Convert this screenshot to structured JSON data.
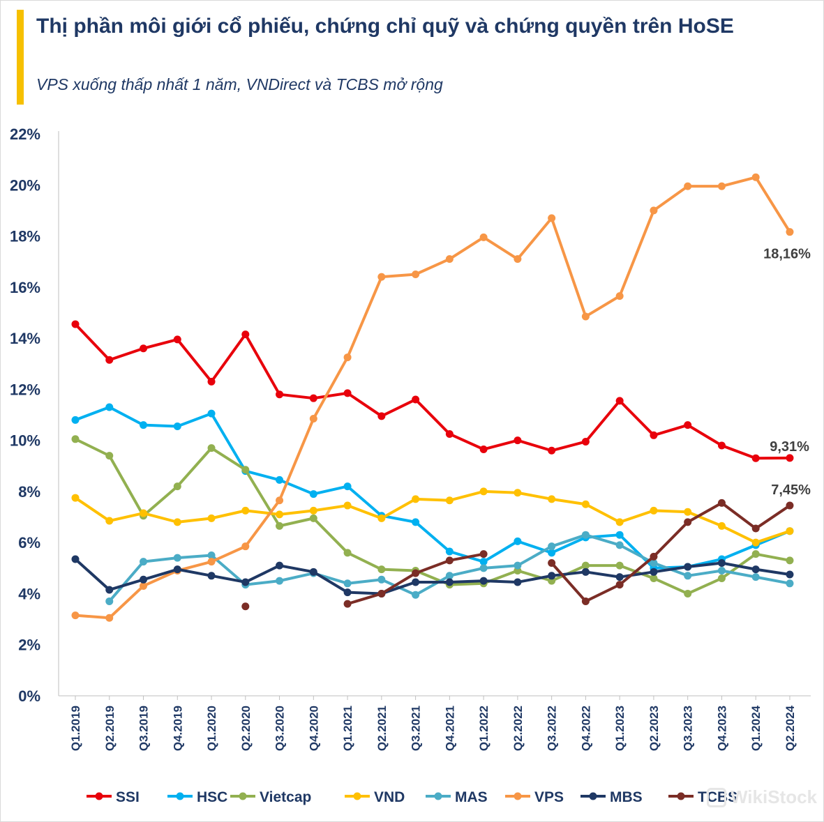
{
  "header": {
    "title": "Thị phần môi giới cổ phiếu, chứng chỉ quỹ và chứng quyền trên HoSE",
    "subtitle": "VPS xuống thấp nhất 1 năm, VNDirect và TCBS mở rộng"
  },
  "watermark": "WikiStock",
  "colors": {
    "accent": "#f6c000",
    "text": "#1f3864"
  },
  "chart_data": {
    "type": "line",
    "title": "Thị phần môi giới cổ phiếu, chứng chỉ quỹ và chứng quyền trên HoSE",
    "subtitle": "VPS xuống thấp nhất 1 năm, VNDirect và TCBS mở rộng",
    "xlabel": "",
    "ylabel": "",
    "ylim": [
      0,
      22
    ],
    "yticks": [
      "0%",
      "2%",
      "4%",
      "6%",
      "8%",
      "10%",
      "12%",
      "14%",
      "16%",
      "18%",
      "20%",
      "22%"
    ],
    "grid": false,
    "legend_position": "bottom",
    "categories": [
      "Q1.2019",
      "Q2.2019",
      "Q3.2019",
      "Q4.2019",
      "Q1.2020",
      "Q2.2020",
      "Q3.2020",
      "Q4.2020",
      "Q1.2021",
      "Q2.2021",
      "Q3.2021",
      "Q4.2021",
      "Q1.2022",
      "Q2.2022",
      "Q3.2022",
      "Q4.2022",
      "Q1.2023",
      "Q2.2023",
      "Q3.2023",
      "Q4.2023",
      "Q1.2024",
      "Q2.2024"
    ],
    "series": [
      {
        "name": "SSI",
        "color": "#e8000b",
        "values": [
          14.55,
          13.15,
          13.6,
          13.95,
          12.3,
          14.15,
          11.8,
          11.65,
          11.85,
          10.95,
          11.6,
          10.25,
          9.65,
          10.0,
          9.6,
          9.95,
          11.55,
          10.2,
          10.6,
          9.8,
          9.3,
          9.31
        ]
      },
      {
        "name": "HSC",
        "color": "#00b0f0",
        "values": [
          10.8,
          11.3,
          10.6,
          10.55,
          11.05,
          8.8,
          8.45,
          7.9,
          8.2,
          7.05,
          6.8,
          5.65,
          5.25,
          6.05,
          5.6,
          6.2,
          6.3,
          5.0,
          5.05,
          5.35,
          5.9,
          6.45
        ]
      },
      {
        "name": "Vietcap",
        "color": "#92b050",
        "values": [
          10.05,
          9.4,
          7.05,
          8.2,
          9.7,
          8.85,
          6.65,
          6.95,
          5.6,
          4.95,
          4.9,
          4.35,
          4.4,
          4.9,
          4.5,
          5.1,
          5.1,
          4.6,
          4.0,
          4.6,
          5.55,
          5.3
        ]
      },
      {
        "name": "VND",
        "color": "#ffc000",
        "values": [
          7.75,
          6.85,
          7.15,
          6.8,
          6.95,
          7.25,
          7.1,
          7.25,
          7.45,
          6.95,
          7.7,
          7.65,
          8.0,
          7.95,
          7.7,
          7.5,
          6.8,
          7.25,
          7.2,
          6.65,
          6.0,
          6.45
        ]
      },
      {
        "name": "MAS",
        "color": "#4bacc6",
        "values": [
          null,
          3.7,
          5.25,
          5.4,
          5.5,
          4.35,
          4.5,
          4.8,
          4.4,
          4.55,
          3.95,
          4.7,
          5.0,
          5.1,
          5.85,
          6.3,
          5.9,
          5.2,
          4.7,
          4.9,
          4.65,
          4.4
        ]
      },
      {
        "name": "VPS",
        "color": "#f79646",
        "values": [
          3.15,
          3.05,
          4.3,
          4.9,
          5.25,
          5.85,
          7.65,
          10.85,
          13.25,
          16.4,
          16.5,
          17.1,
          17.95,
          17.1,
          18.7,
          14.85,
          15.65,
          19.0,
          19.95,
          19.95,
          20.3,
          18.16
        ]
      },
      {
        "name": "MBS",
        "color": "#1f3864",
        "values": [
          5.35,
          4.15,
          4.55,
          4.95,
          4.7,
          4.45,
          5.1,
          4.85,
          4.05,
          4.0,
          4.45,
          4.45,
          4.5,
          4.45,
          4.7,
          4.85,
          4.65,
          4.85,
          5.05,
          5.2,
          4.95,
          4.75
        ]
      },
      {
        "name": "TCBS",
        "color": "#7b2d26",
        "values": [
          null,
          null,
          null,
          null,
          null,
          3.5,
          null,
          null,
          3.6,
          4.0,
          4.8,
          5.3,
          5.55,
          null,
          5.2,
          3.7,
          4.35,
          5.45,
          6.8,
          7.55,
          6.55,
          7.45
        ]
      }
    ],
    "annotations": [
      {
        "series": "VPS",
        "category": "Q2.2024",
        "text": "18,16%"
      },
      {
        "series": "SSI",
        "category": "Q2.2024",
        "text": "9,31%"
      },
      {
        "series": "TCBS",
        "category": "Q2.2024",
        "text": "7,45%"
      }
    ]
  }
}
